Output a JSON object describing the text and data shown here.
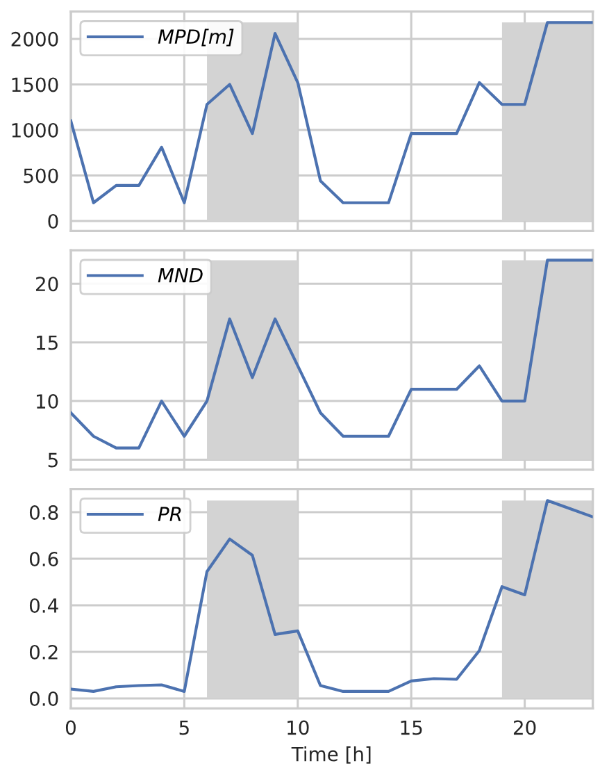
{
  "chart_data": [
    {
      "type": "line",
      "x": [
        0,
        1,
        2,
        3,
        4,
        5,
        6,
        7,
        8,
        9,
        10,
        11,
        12,
        13,
        14,
        15,
        16,
        17,
        18,
        19,
        20,
        21,
        22,
        23
      ],
      "series": [
        {
          "name": "MPD[m]",
          "color": "#4c72b0",
          "values": [
            1100,
            200,
            390,
            390,
            810,
            200,
            1280,
            1500,
            960,
            2060,
            1520,
            440,
            200,
            200,
            200,
            960,
            960,
            960,
            1520,
            1280,
            1280,
            2180,
            2180,
            2180
          ]
        }
      ],
      "xlim": [
        0,
        23
      ],
      "xticks": [
        0,
        5,
        10,
        15,
        20
      ],
      "ylim": [
        -110,
        2300
      ],
      "yticks": [
        0,
        500,
        1000,
        1500,
        2000
      ],
      "bands": [
        {
          "axis": "x",
          "from": 6,
          "to": 10,
          "color": "#d3d3d3"
        },
        {
          "axis": "x",
          "from": 19,
          "to": 23,
          "color": "#d3d3d3"
        }
      ],
      "grid": true,
      "legend": "top left",
      "tick_labels": "y"
    },
    {
      "type": "line",
      "x": [
        0,
        1,
        2,
        3,
        4,
        5,
        6,
        7,
        8,
        9,
        10,
        11,
        12,
        13,
        14,
        15,
        16,
        17,
        18,
        19,
        20,
        21,
        22,
        23
      ],
      "series": [
        {
          "name": "MND",
          "color": "#4c72b0",
          "values": [
            9,
            7,
            6,
            6,
            10,
            7,
            10,
            17,
            12,
            17,
            13,
            9,
            7,
            7,
            7,
            11,
            11,
            11,
            13,
            10,
            10,
            22,
            22,
            22
          ]
        }
      ],
      "xlim": [
        0,
        23
      ],
      "xticks": [
        0,
        5,
        10,
        15,
        20
      ],
      "ylim": [
        4.15,
        22.85
      ],
      "yticks": [
        5,
        10,
        15,
        20
      ],
      "bands": [
        {
          "axis": "x",
          "from": 6,
          "to": 10,
          "color": "#d3d3d3"
        },
        {
          "axis": "x",
          "from": 19,
          "to": 23,
          "color": "#d3d3d3"
        }
      ],
      "grid": true,
      "legend": "top left",
      "tick_labels": "y"
    },
    {
      "type": "line",
      "x": [
        0,
        1,
        2,
        3,
        4,
        5,
        6,
        7,
        8,
        9,
        10,
        11,
        12,
        13,
        14,
        15,
        16,
        17,
        18,
        19,
        20,
        21,
        22,
        23
      ],
      "series": [
        {
          "name": "PR",
          "color": "#4c72b0",
          "values": [
            0.04,
            0.03,
            0.05,
            0.055,
            0.058,
            0.03,
            0.545,
            0.685,
            0.615,
            0.275,
            0.29,
            0.055,
            0.03,
            0.03,
            0.03,
            0.075,
            0.085,
            0.082,
            0.205,
            0.48,
            0.445,
            0.85,
            0.815,
            0.78
          ]
        }
      ],
      "xlabel": "Time [h]",
      "xlim": [
        0,
        23
      ],
      "xticks": [
        0,
        5,
        10,
        15,
        20
      ],
      "ylim": [
        -0.043,
        0.9
      ],
      "yticks": [
        {
          "value": 0,
          "label": "0.0"
        },
        0.2,
        0.4,
        0.6,
        0.8
      ],
      "bands": [
        {
          "axis": "x",
          "from": 6,
          "to": 10,
          "color": "#d3d3d3"
        },
        {
          "axis": "x",
          "from": 19,
          "to": 23,
          "color": "#d3d3d3"
        }
      ],
      "grid": true,
      "legend": "top left"
    }
  ]
}
